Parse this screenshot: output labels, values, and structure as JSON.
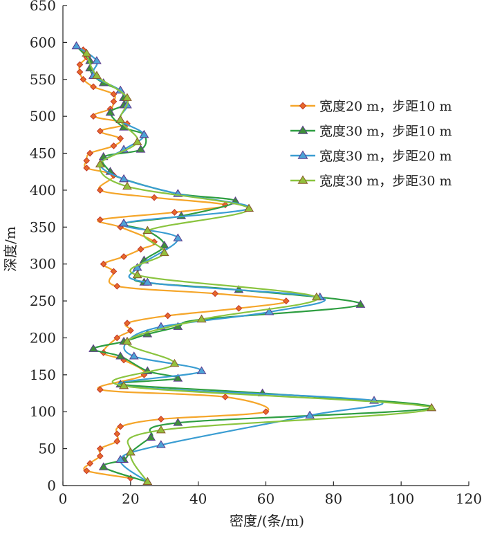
{
  "chart_data": {
    "type": "line",
    "title": "",
    "xlabel": "密度/(条/m)",
    "ylabel": "深度/m",
    "xlim": [
      0,
      120
    ],
    "ylim": [
      0,
      650
    ],
    "x_ticks": [
      0,
      20,
      40,
      60,
      80,
      100,
      120
    ],
    "y_ticks": [
      0,
      50,
      100,
      150,
      200,
      250,
      300,
      350,
      400,
      450,
      500,
      550,
      600,
      650
    ],
    "legend_position": "right",
    "series": [
      {
        "name": "宽度20 m，步距10 m",
        "color": "#f5a62a",
        "marker": "diamond",
        "marker_fill": "#e8692a",
        "marker_edge": "#c0392b",
        "points": [
          [
            20,
            10
          ],
          [
            7,
            20
          ],
          [
            8,
            30
          ],
          [
            11,
            40
          ],
          [
            11,
            50
          ],
          [
            16,
            60
          ],
          [
            16,
            70
          ],
          [
            17,
            80
          ],
          [
            29,
            90
          ],
          [
            60,
            100
          ],
          [
            48,
            120
          ],
          [
            11,
            130
          ],
          [
            24,
            150
          ],
          [
            18,
            170
          ],
          [
            12,
            180
          ],
          [
            16,
            200
          ],
          [
            20,
            210
          ],
          [
            19,
            220
          ],
          [
            31,
            230
          ],
          [
            52,
            240
          ],
          [
            66,
            250
          ],
          [
            45,
            260
          ],
          [
            16,
            270
          ],
          [
            15,
            290
          ],
          [
            12,
            300
          ],
          [
            18,
            310
          ],
          [
            23,
            320
          ],
          [
            27,
            330
          ],
          [
            17,
            350
          ],
          [
            11,
            360
          ],
          [
            33,
            370
          ],
          [
            48,
            380
          ],
          [
            27,
            390
          ],
          [
            11,
            400
          ],
          [
            15,
            420
          ],
          [
            7,
            430
          ],
          [
            7,
            440
          ],
          [
            8,
            450
          ],
          [
            15,
            460
          ],
          [
            17,
            470
          ],
          [
            11,
            480
          ],
          [
            19,
            490
          ],
          [
            9,
            500
          ],
          [
            14,
            510
          ],
          [
            15,
            520
          ],
          [
            15,
            530
          ],
          [
            9,
            540
          ],
          [
            6,
            550
          ],
          [
            5,
            560
          ],
          [
            5,
            570
          ],
          [
            7,
            580
          ],
          [
            6,
            590
          ]
        ]
      },
      {
        "name": "宽度30 m，步距10 m",
        "color": "#2e9e41",
        "marker": "triangle",
        "marker_fill": "#3f8f3a",
        "marker_edge": "#5b3a8c",
        "points": [
          [
            25,
            5
          ],
          [
            12,
            25
          ],
          [
            18,
            35
          ],
          [
            20,
            45
          ],
          [
            26,
            65
          ],
          [
            34,
            85
          ],
          [
            109,
            105
          ],
          [
            59,
            125
          ],
          [
            17,
            137
          ],
          [
            34,
            145
          ],
          [
            25,
            155
          ],
          [
            17,
            175
          ],
          [
            9,
            185
          ],
          [
            18,
            195
          ],
          [
            25,
            205
          ],
          [
            34,
            215
          ],
          [
            41,
            225
          ],
          [
            88,
            245
          ],
          [
            52,
            265
          ],
          [
            24,
            275
          ],
          [
            22,
            285
          ],
          [
            24,
            305
          ],
          [
            30,
            325
          ],
          [
            25,
            345
          ],
          [
            18,
            355
          ],
          [
            35,
            365
          ],
          [
            51,
            385
          ],
          [
            34,
            395
          ],
          [
            18,
            415
          ],
          [
            14,
            425
          ],
          [
            12,
            445
          ],
          [
            23,
            455
          ],
          [
            24,
            475
          ],
          [
            18,
            485
          ],
          [
            14,
            505
          ],
          [
            18,
            515
          ],
          [
            18,
            525
          ],
          [
            17,
            535
          ],
          [
            12,
            545
          ],
          [
            9,
            555
          ],
          [
            8,
            565
          ],
          [
            8,
            575
          ],
          [
            4,
            595
          ]
        ]
      },
      {
        "name": "宽度30 m，步距20 m",
        "color": "#3a9dd2",
        "marker": "triangle",
        "marker_fill": "#4da3d6",
        "marker_edge": "#5b3a8c",
        "points": [
          [
            25,
            5
          ],
          [
            17,
            35
          ],
          [
            29,
            55
          ],
          [
            73,
            95
          ],
          [
            92,
            115
          ],
          [
            18,
            135
          ],
          [
            41,
            155
          ],
          [
            21,
            175
          ],
          [
            19,
            195
          ],
          [
            29,
            215
          ],
          [
            61,
            235
          ],
          [
            76,
            255
          ],
          [
            25,
            275
          ],
          [
            22,
            295
          ],
          [
            34,
            335
          ],
          [
            18,
            355
          ],
          [
            55,
            375
          ],
          [
            34,
            395
          ],
          [
            18,
            415
          ],
          [
            11,
            435
          ],
          [
            18,
            455
          ],
          [
            24,
            475
          ],
          [
            17,
            495
          ],
          [
            19,
            515
          ],
          [
            17,
            535
          ],
          [
            9,
            555
          ],
          [
            10,
            575
          ],
          [
            4,
            595
          ]
        ]
      },
      {
        "name": "宽度30 m，步距30 m",
        "color": "#8ac43f",
        "marker": "triangle",
        "marker_fill": "#93c03c",
        "marker_edge": "#8a5a2b",
        "points": [
          [
            25,
            5
          ],
          [
            20,
            45
          ],
          [
            29,
            75
          ],
          [
            109,
            105
          ],
          [
            18,
            135
          ],
          [
            33,
            165
          ],
          [
            19,
            195
          ],
          [
            41,
            225
          ],
          [
            75,
            255
          ],
          [
            22,
            285
          ],
          [
            30,
            315
          ],
          [
            25,
            345
          ],
          [
            55,
            375
          ],
          [
            19,
            405
          ],
          [
            11,
            435
          ],
          [
            22,
            465
          ],
          [
            17,
            495
          ],
          [
            19,
            525
          ],
          [
            10,
            555
          ],
          [
            7,
            585
          ]
        ]
      }
    ]
  }
}
